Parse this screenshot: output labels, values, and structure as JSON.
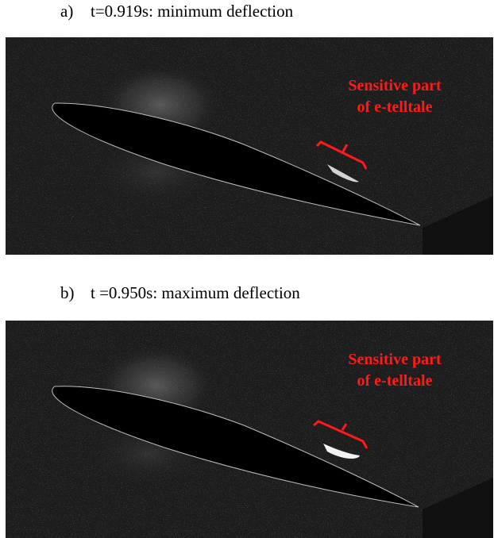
{
  "panels": [
    {
      "label": "a)",
      "caption": "t=0.919s: minimum deflection",
      "annotation_line1": "Sensitive part",
      "annotation_line2": "of e-telltale"
    },
    {
      "label": "b)",
      "caption": "t =0.950s: maximum deflection",
      "annotation_line1": "Sensitive part",
      "annotation_line2": "of e-telltale"
    }
  ],
  "colors": {
    "annotation": "#ff1a1a",
    "background": "#1c1c1c"
  }
}
